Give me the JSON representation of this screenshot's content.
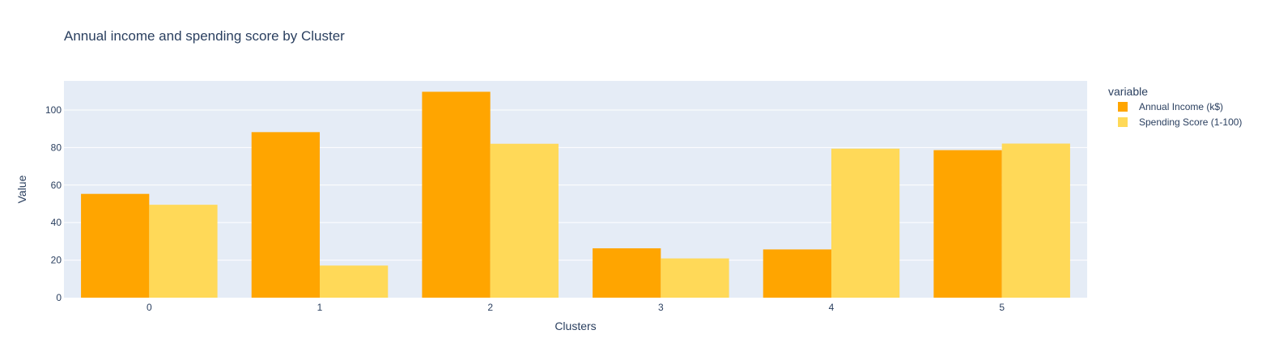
{
  "chart_data": {
    "type": "bar",
    "title": "Annual income and spending score by Cluster",
    "xlabel": "Clusters",
    "ylabel": "Value",
    "categories": [
      "0",
      "1",
      "2",
      "3",
      "4",
      "5"
    ],
    "ylim": [
      0,
      115.5
    ],
    "yticks": [
      0,
      20,
      40,
      60,
      80,
      100
    ],
    "grid": true,
    "legend_title": "variable",
    "legend_placement": "top-right",
    "series": [
      {
        "name": "Annual Income (k$)",
        "color": "#FFA500",
        "values": [
          55.3,
          88.2,
          109.7,
          26.3,
          25.7,
          78.6
        ]
      },
      {
        "name": "Spending Score (1-100)",
        "color": "#FFD958",
        "values": [
          49.5,
          17.1,
          82.0,
          20.9,
          79.4,
          82.1
        ]
      }
    ]
  },
  "colors": {
    "plot_background": "#E5ECF6",
    "gridline": "#FFFFFF",
    "text": "#2a3f5f"
  }
}
